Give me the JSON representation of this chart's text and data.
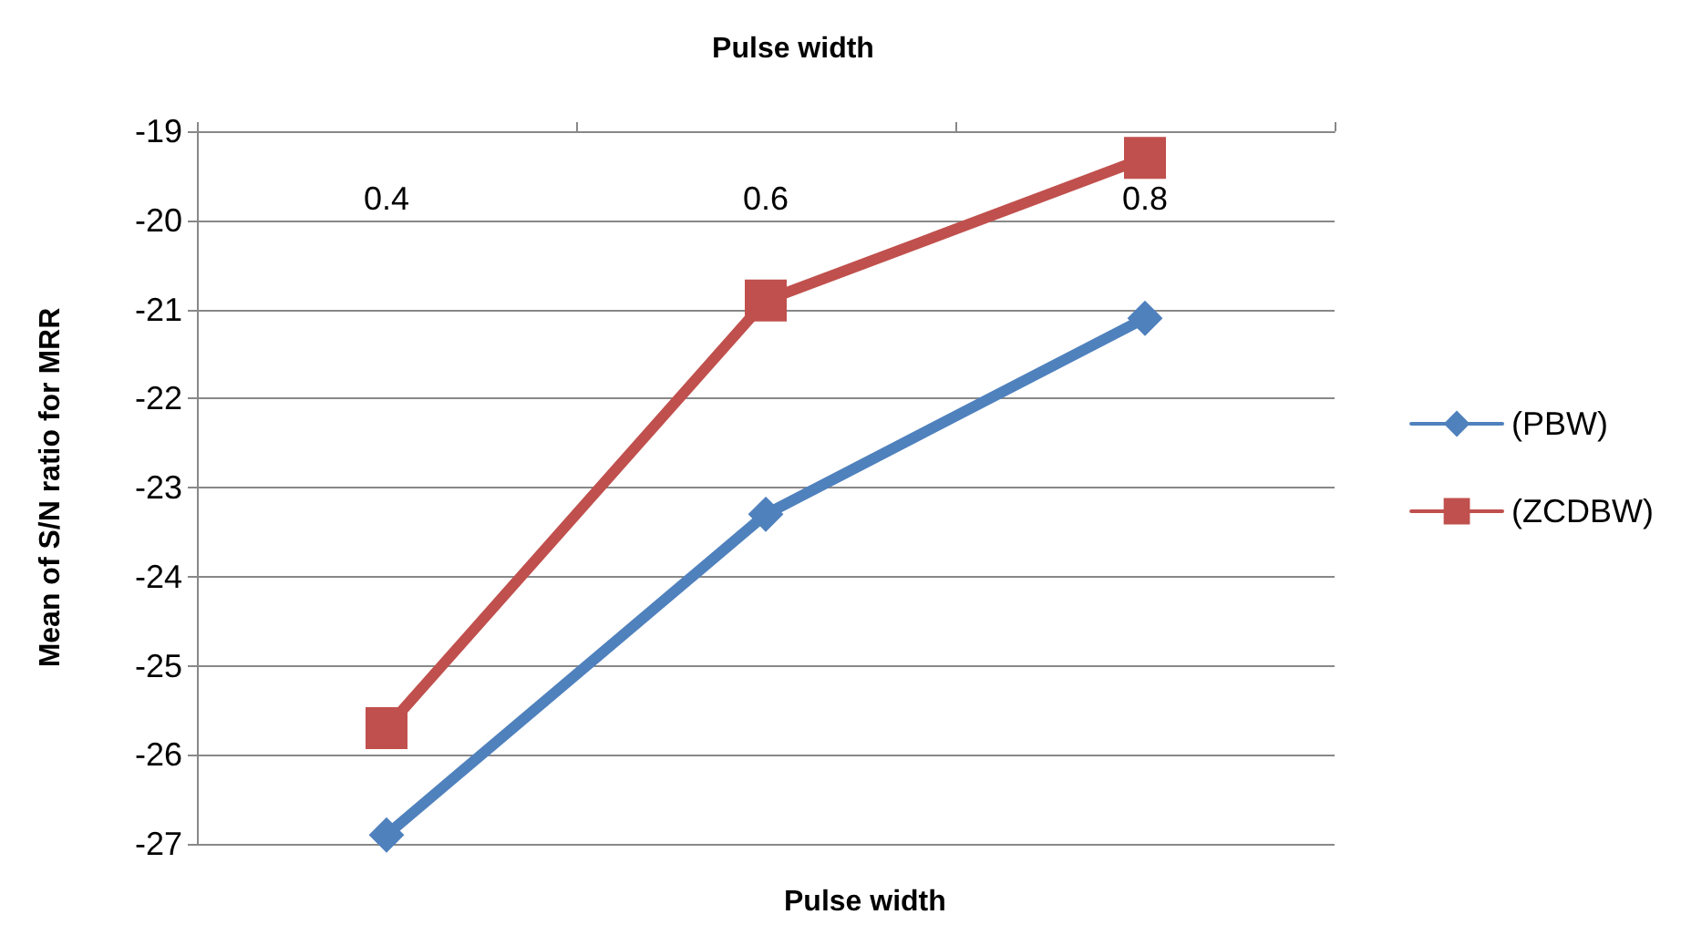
{
  "chart_data": {
    "type": "line",
    "title": "Pulse width",
    "xlabel": "Pulse width",
    "ylabel": "Mean of S/N ratio for MRR",
    "categories": [
      "0.4",
      "0.6",
      "0.8"
    ],
    "series": [
      {
        "name": "(PBW)",
        "color": "#4f81bd",
        "marker": "diamond",
        "values": [
          -26.9,
          -23.3,
          -21.1
        ]
      },
      {
        "name": "(ZCDBW)",
        "color": "#c0504d",
        "marker": "square",
        "values": [
          -25.7,
          -20.9,
          -19.3
        ]
      }
    ],
    "ylim": [
      -27,
      -19
    ],
    "yticks": [
      -27,
      -26,
      -25,
      -24,
      -23,
      -22,
      -21,
      -20,
      -19
    ],
    "grid": "y",
    "legend": "right",
    "line_style": "solid"
  }
}
